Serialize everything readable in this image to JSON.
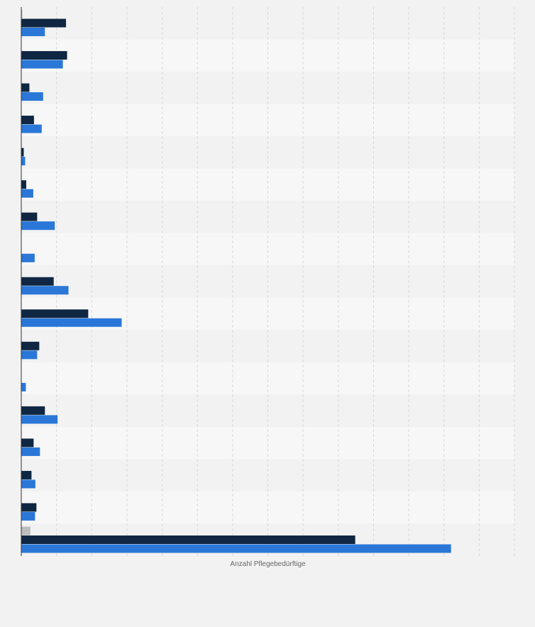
{
  "chart_data": {
    "type": "bar",
    "orientation": "horizontal",
    "xlabel": "Anzahl Pflegebedürftige",
    "xlim": [
      0,
      140000
    ],
    "x_gridlines": 14,
    "grid": true,
    "legend": "none",
    "colors": {
      "background": "#f2f2f2",
      "band_dark": "#f2f2f2",
      "band_light": "#f7f7f7",
      "grid": "#d9d9d9",
      "axis": "#333333",
      "label": "#666666"
    },
    "series": [
      {
        "color": "#bdbdbd",
        "values": [
          300,
          null,
          null,
          null,
          null,
          null,
          null,
          null,
          null,
          null,
          null,
          null,
          null,
          null,
          null,
          null,
          2600
        ]
      },
      {
        "color": "#0f2742",
        "values": [
          12700,
          13000,
          2300,
          3600,
          700,
          1400,
          4500,
          0,
          9200,
          19000,
          5100,
          0,
          6700,
          3500,
          2900,
          4300,
          94800
        ]
      },
      {
        "color": "#2a77d8",
        "values": [
          6700,
          11800,
          6200,
          5800,
          1100,
          3400,
          9500,
          3800,
          13400,
          28500,
          4500,
          1300,
          10300,
          5300,
          4000,
          3900,
          122000
        ]
      }
    ]
  }
}
